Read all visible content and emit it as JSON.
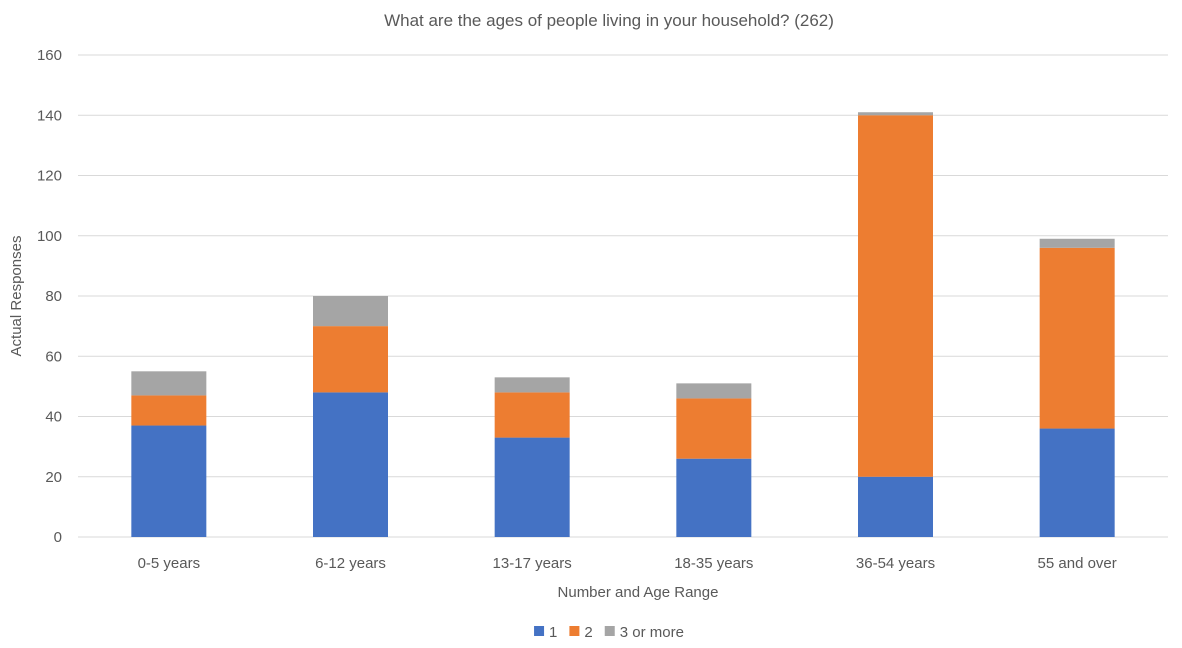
{
  "chart_data": {
    "type": "bar",
    "stacked": true,
    "title": "What are the ages of people living in your household? (262)",
    "xlabel": "Number and Age Range",
    "ylabel": "Actual Responses",
    "ylim": [
      0,
      160
    ],
    "yticks": [
      0,
      20,
      40,
      60,
      80,
      100,
      120,
      140,
      160
    ],
    "grid": true,
    "legend_position": "bottom",
    "categories": [
      "0-5 years",
      "6-12 years",
      "13-17 years",
      "18-35 years",
      "36-54 years",
      "55 and over"
    ],
    "series": [
      {
        "name": "1",
        "color": "#4472c4",
        "values": [
          37,
          48,
          33,
          26,
          20,
          36
        ]
      },
      {
        "name": "2",
        "color": "#ed7d31",
        "values": [
          10,
          22,
          15,
          20,
          120,
          60
        ]
      },
      {
        "name": "3 or more",
        "color": "#a5a5a5",
        "values": [
          8,
          10,
          5,
          5,
          1,
          3
        ]
      }
    ]
  }
}
